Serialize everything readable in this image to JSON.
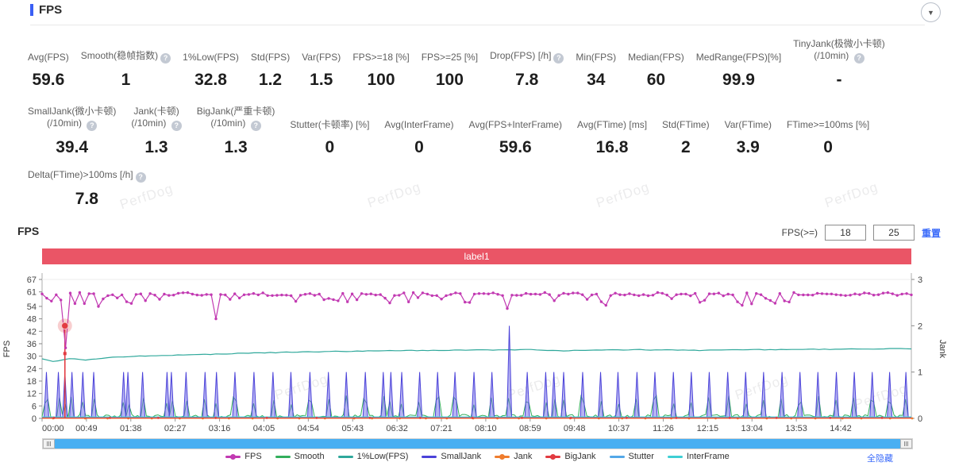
{
  "header": {
    "title": "FPS"
  },
  "collapse_icon": "▼",
  "watermark": {
    "text": "PerfDog"
  },
  "stats": {
    "rows": [
      [
        {
          "label": "Avg(FPS)",
          "value": "59.6"
        },
        {
          "label": "Smooth(稳帧指数)",
          "help": true,
          "value": "1"
        },
        {
          "label": "1%Low(FPS)",
          "value": "32.8"
        },
        {
          "label": "Std(FPS)",
          "value": "1.2"
        },
        {
          "label": "Var(FPS)",
          "value": "1.5"
        },
        {
          "label": "FPS>=18 [%]",
          "value": "100"
        },
        {
          "label": "FPS>=25 [%]",
          "value": "100"
        },
        {
          "label": "Drop(FPS) [/h]",
          "help": true,
          "value": "7.8"
        },
        {
          "label": "Min(FPS)",
          "value": "34"
        },
        {
          "label": "Median(FPS)",
          "value": "60"
        },
        {
          "label": "MedRange(FPS)[%]",
          "value": "99.9"
        },
        {
          "label": "TinyJank(极微小卡顿)",
          "label2": "(/10min)",
          "help": true,
          "value": "-"
        }
      ],
      [
        {
          "label": "SmallJank(微小卡顿)",
          "label2": "(/10min)",
          "help": true,
          "value": "39.4"
        },
        {
          "label": "Jank(卡顿)",
          "label2": "(/10min)",
          "help": true,
          "value": "1.3"
        },
        {
          "label": "BigJank(严重卡顿)",
          "label2": "(/10min)",
          "help": true,
          "value": "1.3"
        },
        {
          "label": "Stutter(卡顿率) [%]",
          "value": "0"
        },
        {
          "label": "Avg(InterFrame)",
          "value": "0"
        },
        {
          "label": "Avg(FPS+InterFrame)",
          "value": "59.6"
        },
        {
          "label": "Avg(FTime) [ms]",
          "value": "16.8"
        },
        {
          "label": "Std(FTime)",
          "value": "2"
        },
        {
          "label": "Var(FTime)",
          "value": "3.9"
        },
        {
          "label": "FTime>=100ms [%]",
          "value": "0"
        }
      ],
      [
        {
          "label": "Delta(FTime)>100ms [/h]",
          "help": true,
          "value": "7.8"
        }
      ]
    ]
  },
  "chart": {
    "title": "FPS",
    "filter_label": "FPS(>=)",
    "filter_inputs": [
      "18",
      "25"
    ],
    "reset_label": "重置",
    "banner": {
      "text": "label1",
      "color": "#ea5566"
    },
    "hide_all_label": "全隐藏"
  },
  "chart_data": {
    "type": "line",
    "title": "label1",
    "x_ticks": [
      "00:00",
      "00:49",
      "01:38",
      "02:27",
      "03:16",
      "04:05",
      "04:54",
      "05:43",
      "06:32",
      "07:21",
      "08:10",
      "08:59",
      "09:48",
      "10:37",
      "11:26",
      "12:15",
      "13:04",
      "13:53",
      "14:42"
    ],
    "tick_interval_min": 0.81667,
    "x_duration_min": 16.0,
    "y_left": {
      "label": "FPS",
      "max": 67,
      "ticks": [
        67,
        61,
        54,
        48,
        42,
        36,
        30,
        24,
        18,
        12,
        6,
        0
      ]
    },
    "y_right": {
      "label": "Jank",
      "max": 3,
      "ticks": [
        3,
        2,
        1,
        0
      ]
    },
    "noise_seed": 1337,
    "legend_markers_with_dot": [
      "FPS",
      "Jank",
      "BigJank"
    ],
    "series": [
      {
        "name": "FPS",
        "color": "#c23ab2",
        "axis": "left",
        "type": "noisy-line",
        "markers": true,
        "baseline": 59.9,
        "noise": 1.6,
        "dip_prob": 0.17,
        "dip_depth": 3.5,
        "dips": [
          [
            0.42,
            34
          ],
          [
            1.05,
            54
          ],
          [
            3.21,
            48
          ],
          [
            8.6,
            53
          ],
          [
            10.4,
            54.5
          ],
          [
            12.9,
            54.5
          ],
          [
            13.5,
            55.5
          ]
        ]
      },
      {
        "name": "Smooth",
        "color": "#33ae5c",
        "axis": "left",
        "type": "noisy-line",
        "baseline": 0.2,
        "noise": 1.7,
        "event_spike_min": 6,
        "event_spike_rand": 5
      },
      {
        "name": "1%Low(FPS)",
        "color": "#2fa89b",
        "axis": "left",
        "type": "control-line",
        "points": [
          [
            0,
            28.6
          ],
          [
            0.25,
            27.2
          ],
          [
            0.45,
            28.9
          ],
          [
            0.8,
            28.2
          ],
          [
            1.2,
            29.3
          ],
          [
            2,
            30.2
          ],
          [
            3,
            30.9
          ],
          [
            4,
            31.6
          ],
          [
            5,
            32.1
          ],
          [
            6,
            32.5
          ],
          [
            7,
            32.8
          ],
          [
            8,
            33.0
          ],
          [
            9,
            33.1
          ],
          [
            9.6,
            32.6
          ],
          [
            10,
            32.9
          ],
          [
            11,
            33.1
          ],
          [
            12,
            32.8
          ],
          [
            13,
            33.1
          ],
          [
            14,
            33.3
          ],
          [
            15,
            33.4
          ],
          [
            16,
            33.6
          ]
        ]
      },
      {
        "name": "SmallJank",
        "color": "#4b42d9",
        "fill": "rgba(110,104,230,0.5)",
        "axis": "right",
        "type": "spikes",
        "events": [
          [
            0.08,
            1
          ],
          [
            0.3,
            1
          ],
          [
            0.42,
            1
          ],
          [
            0.55,
            1
          ],
          [
            0.75,
            1
          ],
          [
            0.95,
            1
          ],
          [
            1.5,
            1
          ],
          [
            1.58,
            1
          ],
          [
            1.85,
            1
          ],
          [
            2.3,
            1
          ],
          [
            2.38,
            1
          ],
          [
            2.65,
            1
          ],
          [
            3.0,
            1
          ],
          [
            3.21,
            1
          ],
          [
            3.55,
            1
          ],
          [
            3.9,
            1
          ],
          [
            4.25,
            1
          ],
          [
            4.58,
            1
          ],
          [
            4.93,
            1
          ],
          [
            5.27,
            1
          ],
          [
            5.6,
            1
          ],
          [
            5.95,
            1
          ],
          [
            6.28,
            1
          ],
          [
            6.42,
            1
          ],
          [
            6.62,
            1
          ],
          [
            6.95,
            1
          ],
          [
            7.28,
            1
          ],
          [
            7.6,
            1
          ],
          [
            7.95,
            1
          ],
          [
            8.28,
            1
          ],
          [
            8.6,
            2
          ],
          [
            8.93,
            1
          ],
          [
            9.27,
            1
          ],
          [
            9.42,
            1
          ],
          [
            9.6,
            1
          ],
          [
            9.95,
            1
          ],
          [
            10.28,
            1
          ],
          [
            10.6,
            1
          ],
          [
            10.95,
            1
          ],
          [
            11.28,
            1
          ],
          [
            11.62,
            1
          ],
          [
            11.95,
            1
          ],
          [
            12.28,
            1
          ],
          [
            12.62,
            1
          ],
          [
            12.95,
            1
          ],
          [
            13.28,
            1
          ],
          [
            13.62,
            1
          ],
          [
            13.95,
            1
          ],
          [
            14.28,
            1
          ],
          [
            14.62,
            1
          ],
          [
            14.95,
            1
          ],
          [
            15.28,
            1
          ],
          [
            15.6,
            1
          ],
          [
            15.9,
            1
          ]
        ]
      },
      {
        "name": "Jank",
        "color": "#ef7d2e",
        "axis": "right",
        "type": "zero-line",
        "markers": true,
        "marker_step": 0.45,
        "offset": 0
      },
      {
        "name": "BigJank",
        "color": "#e23b41",
        "axis": "right",
        "type": "zero-line",
        "markers": true,
        "marker_step": 0.95,
        "offset": 0.6,
        "spike": [
          0.42,
          2
        ]
      },
      {
        "name": "Stutter",
        "color": "#53a8e8",
        "axis": "left",
        "type": "zero-line",
        "offset": 1.2
      },
      {
        "name": "InterFrame",
        "color": "#3ecfd4",
        "axis": "left",
        "type": "zero-line",
        "offset": 1.8
      }
    ],
    "selected_point": {
      "t": 0.42,
      "jank": 2,
      "color": "#e23b41"
    }
  }
}
